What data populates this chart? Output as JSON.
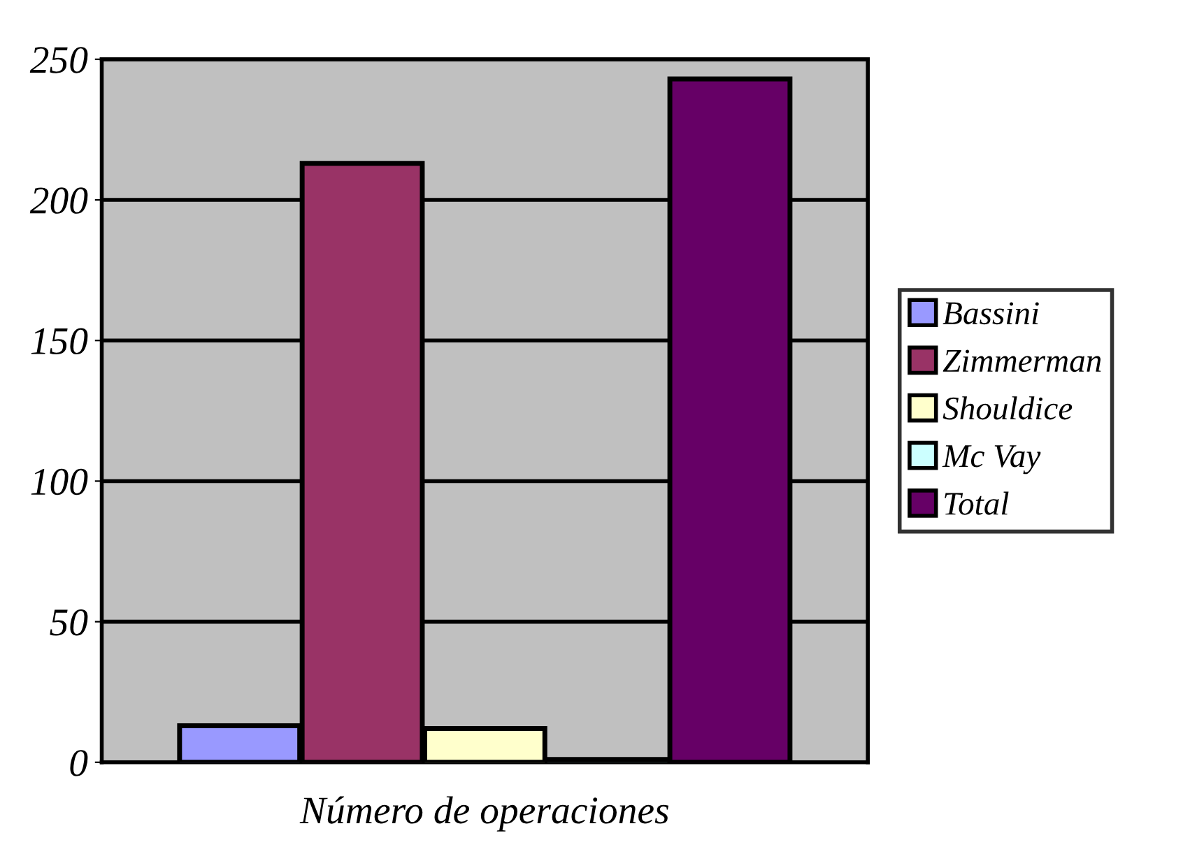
{
  "chart_data": {
    "type": "bar",
    "categories": [
      null
    ],
    "xlabel": "Número de operaciones",
    "series": [
      {
        "name": "Bassini",
        "color": "#9999ff",
        "values": [
          13
        ]
      },
      {
        "name": "Zimmerman",
        "color": "#993366",
        "values": [
          213
        ]
      },
      {
        "name": "Shouldice",
        "color": "#ffffcc",
        "values": [
          12
        ]
      },
      {
        "name": "Mc Vay",
        "color": "#ccffff",
        "values": [
          1
        ]
      },
      {
        "name": "Total",
        "color": "#660066",
        "values": [
          243
        ]
      }
    ],
    "ylim": [
      0,
      250
    ],
    "yticks": [
      0,
      50,
      100,
      150,
      200,
      250
    ],
    "grid": "y",
    "legend": "right"
  }
}
